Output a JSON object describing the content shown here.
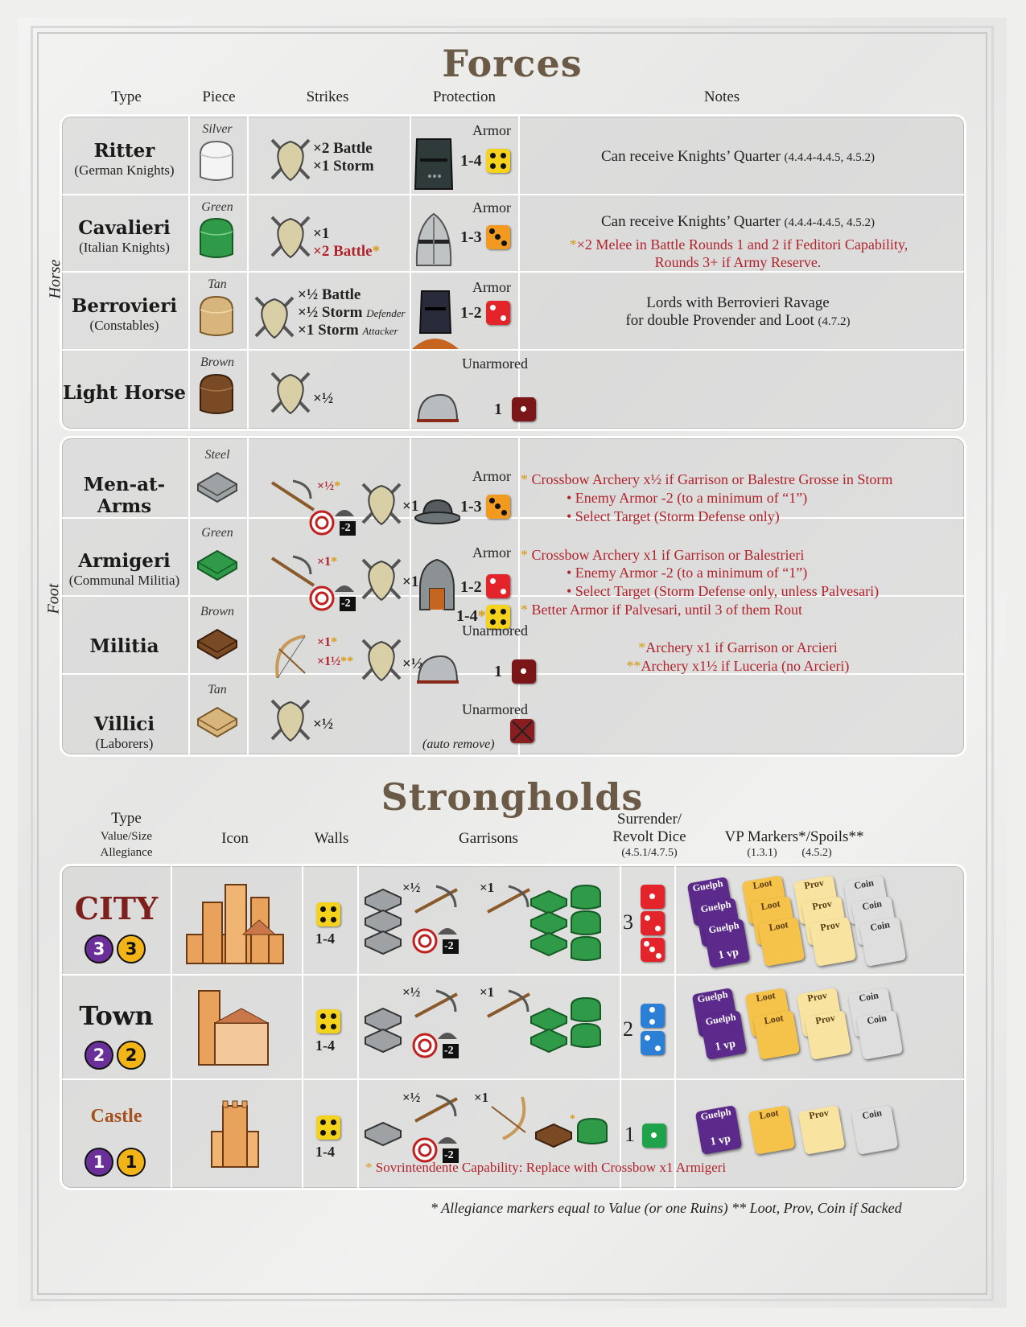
{
  "forces": {
    "title": "Forces",
    "headers": {
      "type": "Type",
      "piece": "Piece",
      "strikes": "Strikes",
      "protection": "Protection",
      "notes": "Notes"
    },
    "horse_label": "Horse",
    "foot_label": "Foot",
    "rows": [
      {
        "name": "Ritter",
        "sub": "(German Knights)",
        "color": "Silver",
        "strike1": "×2 Battle",
        "strike2": "×1 Storm",
        "prot_type": "Armor",
        "prot_value": "1-4",
        "note1": "Can receive Knights’ Quarter",
        "note1_ref": "(4.4.4-4.4.5, 4.5.2)"
      },
      {
        "name": "Cavalieri",
        "sub": "(Italian Knights)",
        "color": "Green",
        "strike1": "×1",
        "strike2": "×2 Battle",
        "strike2_mark": "*",
        "prot_type": "Armor",
        "prot_value": "1-3",
        "note1": "Can receive Knights’ Quarter",
        "note1_ref": "(4.4.4-4.4.5, 4.5.2)",
        "note2": "×2 Melee in Battle Rounds 1 and 2 if Feditori Capability,",
        "note3": "Rounds 3+ if Army Reserve."
      },
      {
        "name": "Berrovieri",
        "sub": "(Constables)",
        "color": "Tan",
        "strike1": "×½ Battle",
        "strike2": "×½ Storm",
        "strike2_tag": "Defender",
        "strike3": "×1 Storm",
        "strike3_tag": "Attacker",
        "prot_type": "Armor",
        "prot_value": "1-2",
        "note1": "Lords with Berrovieri Ravage",
        "note2": "for double Provender and Loot",
        "note2_ref": "(4.7.2)"
      },
      {
        "name": "Light Horse",
        "color": "Brown",
        "strike1": "×½",
        "prot_type": "Unarmored",
        "prot_value": "1"
      },
      {
        "name": "Men-at-Arms",
        "color": "Steel",
        "archery": "×½",
        "archery_mark": "*",
        "melee": "×1",
        "prot_type": "Armor",
        "prot_value": "1-3",
        "notes": [
          "Crossbow Archery x½ if Garrison or Balestre Grosse in Storm",
          "• Enemy Armor -2 (to a minimum of “1”)",
          "• Select Target (Storm Defense only)"
        ]
      },
      {
        "name": "Armigeri",
        "sub": "(Communal Militia)",
        "color": "Green",
        "archery": "×1",
        "archery_mark": "*",
        "melee": "×1",
        "prot_type": "Armor",
        "prot_value": "1-2",
        "prot_value2": "1-4",
        "prot_mark2": "*",
        "notes": [
          "Crossbow Archery x1 if Garrison or Balestrieri",
          "• Enemy Armor -2 (to a minimum of “1”)",
          "• Select Target (Storm Defense only, unless Palvesari)",
          "Better Armor if Palvesari, until 3 of them Rout"
        ]
      },
      {
        "name": "Militia",
        "color": "Brown",
        "archery": "×1",
        "archery_mark": "*",
        "archery2": "×1½",
        "archery2_mark": "**",
        "melee": "×½",
        "prot_type": "Unarmored",
        "prot_value": "1",
        "notes": [
          "Archery x1 if Garrison or Arcieri",
          "Archery x1½ if Luceria (no Arcieri)"
        ],
        "note_marks": [
          "*",
          "**"
        ]
      },
      {
        "name": "Villici",
        "sub": "(Laborers)",
        "color": "Tan",
        "strike1": "×½",
        "prot_type": "Unarmored",
        "prot_value": "(auto remove)"
      }
    ],
    "archery_penalty": "-2"
  },
  "strongholds": {
    "title": "Strongholds",
    "headers": {
      "type": "Type",
      "type_sub1": "Value/Size",
      "type_sub2": "Allegiance",
      "icon": "Icon",
      "walls": "Walls",
      "garrisons": "Garrisons",
      "surrender1": "Surrender/",
      "surrender2": "Revolt Dice",
      "surrender_ref": "(4.5.1/4.7.5)",
      "vp": "VP Markers*/Spoils**",
      "vp_ref1": "(1.3.1)",
      "vp_ref2": "(4.5.2)"
    },
    "rows": [
      {
        "name": "CITY",
        "value": "3",
        "allegiance": "3",
        "walls": "1-4",
        "xb1": "×½",
        "xb2": "×1",
        "dice": "3"
      },
      {
        "name": "Town",
        "value": "2",
        "allegiance": "2",
        "walls": "1-4",
        "xb1": "×½",
        "xb2": "×1",
        "dice": "2"
      },
      {
        "name": "Castle",
        "value": "1",
        "allegiance": "1",
        "walls": "1-4",
        "xb1": "×½",
        "xb2": "×1",
        "dice": "1"
      }
    ],
    "card_labels": {
      "guelph": "Guelph",
      "vp": "1 vp",
      "loot": "Loot",
      "prov": "Prov",
      "coin": "Coin"
    },
    "castle_note": "Sovrintendente Capability: Replace with Crossbow x1 Armigeri",
    "footnote": "* Allegiance markers equal to Value (or one Ruins)   ** Loot, Prov, Coin if Sacked"
  },
  "colors": {
    "title": "#6b5a45",
    "red": "#b1232b",
    "yellow_die": "#f5d21c",
    "orange_die": "#f29a1f",
    "red_die": "#e4242b",
    "brown_die": "#7a1518",
    "blue_die": "#2b7fd4",
    "green_die": "#1ea34a",
    "purple": "#6b2f9a",
    "gold": "#f2b417"
  }
}
